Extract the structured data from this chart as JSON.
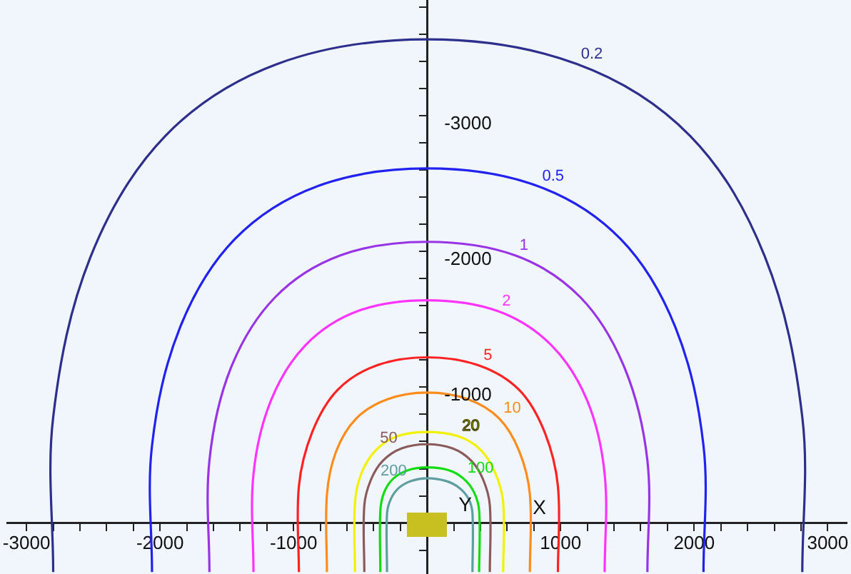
{
  "chart_data": {
    "type": "line",
    "xlabel": "X",
    "ylabel": "Y",
    "legend": false,
    "grid": false,
    "xlim": [
      -3140,
      3140
    ],
    "ylim": [
      375,
      -3850
    ],
    "xticks": [
      {
        "value": -3000,
        "label": "-3000"
      },
      {
        "value": -2800,
        "label": null
      },
      {
        "value": -2600,
        "label": null
      },
      {
        "value": -2400,
        "label": null
      },
      {
        "value": -2200,
        "label": null
      },
      {
        "value": -2000,
        "label": "-2000"
      },
      {
        "value": -1800,
        "label": null
      },
      {
        "value": -1600,
        "label": null
      },
      {
        "value": -1400,
        "label": null
      },
      {
        "value": -1200,
        "label": null
      },
      {
        "value": -1000,
        "label": "-1000"
      },
      {
        "value": -800,
        "label": null
      },
      {
        "value": -600,
        "label": null
      },
      {
        "value": -400,
        "label": null
      },
      {
        "value": -200,
        "label": null
      },
      {
        "value": 200,
        "label": null
      },
      {
        "value": 400,
        "label": null
      },
      {
        "value": 600,
        "label": null
      },
      {
        "value": 800,
        "label": null
      },
      {
        "value": 1000,
        "label": "1000"
      },
      {
        "value": 1200,
        "label": null
      },
      {
        "value": 1400,
        "label": null
      },
      {
        "value": 1600,
        "label": null
      },
      {
        "value": 1800,
        "label": null
      },
      {
        "value": 2000,
        "label": "2000"
      },
      {
        "value": 2200,
        "label": null
      },
      {
        "value": 2400,
        "label": null
      },
      {
        "value": 2600,
        "label": null
      },
      {
        "value": 2800,
        "label": null
      },
      {
        "value": 3000,
        "label": "3000"
      }
    ],
    "yticks": [
      {
        "value": -3800,
        "label": null
      },
      {
        "value": -3600,
        "label": null
      },
      {
        "value": -3400,
        "label": null
      },
      {
        "value": -3200,
        "label": null
      },
      {
        "value": -3000,
        "label": "-3000"
      },
      {
        "value": -2800,
        "label": null
      },
      {
        "value": -2600,
        "label": null
      },
      {
        "value": -2400,
        "label": null
      },
      {
        "value": -2200,
        "label": null
      },
      {
        "value": -2000,
        "label": "-2000"
      },
      {
        "value": -1800,
        "label": null
      },
      {
        "value": -1600,
        "label": null
      },
      {
        "value": -1400,
        "label": null
      },
      {
        "value": -1200,
        "label": null
      },
      {
        "value": -1000,
        "label": "-1000"
      },
      {
        "value": -800,
        "label": null
      },
      {
        "value": -600,
        "label": null
      },
      {
        "value": -400,
        "label": null
      },
      {
        "value": -200,
        "label": null
      },
      {
        "value": 200,
        "label": null
      }
    ],
    "series": [
      {
        "name": "0.2",
        "color": "#2e2e8c",
        "x": [
          -2800,
          -2800,
          -2520,
          -1960,
          -1120,
          0,
          1120,
          1970,
          2530,
          2810,
          2810
        ],
        "values": [
          360,
          -780,
          -1960,
          -2850,
          -3380,
          -3560,
          -3380,
          -2850,
          -1960,
          -780,
          360
        ]
      },
      {
        "name": "0.5",
        "color": "#2222f0",
        "x": [
          -2060,
          -2060,
          -1850,
          -1440,
          -820,
          0,
          830,
          1450,
          1860,
          2070,
          2070
        ],
        "values": [
          360,
          -570,
          -1440,
          -2090,
          -2480,
          -2610,
          -2480,
          -2090,
          -1440,
          -570,
          360
        ]
      },
      {
        "name": "1",
        "color": "#9933e6",
        "x": [
          -1630,
          -1630,
          -1470,
          -1140,
          -650,
          0,
          660,
          1150,
          1480,
          1650,
          1650
        ],
        "values": [
          360,
          -460,
          -1140,
          -1660,
          -1970,
          -2070,
          -1970,
          -1660,
          -1140,
          -460,
          360
        ]
      },
      {
        "name": "2",
        "color": "#ff33ff",
        "x": [
          -1300,
          -1300,
          -1170,
          -910,
          -520,
          0,
          530,
          930,
          1200,
          1330,
          1330
        ],
        "values": [
          360,
          -360,
          -900,
          -1310,
          -1560,
          -1640,
          -1560,
          -1310,
          -900,
          -360,
          360
        ]
      },
      {
        "name": "5",
        "color": "#ff2222",
        "x": [
          -960,
          -960,
          -860,
          -670,
          -380,
          0,
          390,
          690,
          880,
          980,
          980
        ],
        "values": [
          360,
          -270,
          -670,
          -980,
          -1160,
          -1220,
          -1160,
          -980,
          -670,
          -270,
          360
        ]
      },
      {
        "name": "10",
        "color": "#ff8c1a",
        "x": [
          -750,
          -750,
          -680,
          -530,
          -300,
          0,
          310,
          540,
          690,
          770,
          770
        ],
        "values": [
          360,
          -210,
          -530,
          -770,
          -910,
          -960,
          -910,
          -770,
          -530,
          -210,
          360
        ]
      },
      {
        "name": "20",
        "color": "#f2f200",
        "x": [
          -540,
          -540,
          -490,
          -380,
          -220,
          0,
          230,
          400,
          510,
          570,
          570
        ],
        "values": [
          360,
          -150,
          -370,
          -540,
          -640,
          -670,
          -640,
          -540,
          -370,
          -150,
          360
        ]
      },
      {
        "name": "50",
        "color": "#8b5a5a",
        "x": [
          -470,
          -470,
          -420,
          -330,
          -190,
          0,
          190,
          330,
          420,
          470,
          470
        ],
        "values": [
          360,
          -130,
          -320,
          -460,
          -550,
          -580,
          -550,
          -460,
          -320,
          -130,
          360
        ]
      },
      {
        "name": "100",
        "color": "#11dd11",
        "x": [
          -350,
          -350,
          -320,
          -250,
          -140,
          0,
          160,
          270,
          350,
          390,
          390
        ],
        "values": [
          360,
          -90,
          -230,
          -330,
          -390,
          -410,
          -390,
          -330,
          -230,
          -90,
          360
        ]
      },
      {
        "name": "200",
        "color": "#5f9ea0",
        "x": [
          -300,
          -300,
          -270,
          -210,
          -120,
          0,
          140,
          240,
          310,
          340,
          340
        ],
        "values": [
          360,
          -70,
          -180,
          -260,
          -310,
          -330,
          -310,
          -260,
          -180,
          -70,
          360
        ]
      }
    ]
  }
}
